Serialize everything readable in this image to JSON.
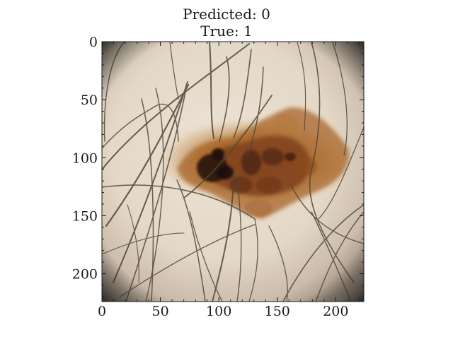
{
  "figure": {
    "title_line1": "Predicted: 0",
    "title_line2": "True: 1"
  },
  "axes": {
    "x_ticks": [
      "0",
      "50",
      "100",
      "150",
      "200"
    ],
    "y_ticks": [
      "0",
      "50",
      "100",
      "150",
      "200"
    ],
    "x_range": [
      0,
      224
    ],
    "y_range": [
      0,
      224
    ]
  },
  "colors": {
    "skin": "#e8dccc",
    "skin_shadow": "#b9a999",
    "lesion_light": "#b97831",
    "lesion_dark": "#2a140d",
    "hair": "#4e4737",
    "vignette": "#1d1b18"
  },
  "image_subject": "dermoscopy-skin-lesion-with-hairs"
}
